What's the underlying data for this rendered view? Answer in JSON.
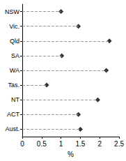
{
  "chart_data": {
    "type": "scatter",
    "orientation": "horizontal",
    "categories": [
      "NSW",
      "Vic.",
      "Qld",
      "SA",
      "WA",
      "Tas.",
      "NT",
      "ACT",
      "Aust."
    ],
    "values": [
      1.0,
      1.45,
      2.25,
      1.02,
      2.17,
      0.63,
      1.95,
      1.45,
      1.5
    ],
    "color": "#000000",
    "marker": "diamond",
    "line_style": "dashed",
    "xlabel": "%",
    "xlim": [
      0,
      2.5
    ],
    "xticks": [
      0,
      0.5,
      1,
      1.5,
      2,
      2.5
    ],
    "grid": false
  }
}
